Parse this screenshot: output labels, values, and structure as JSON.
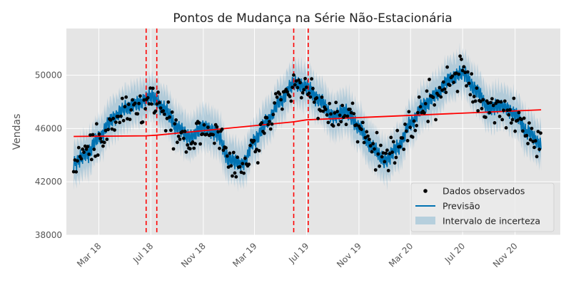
{
  "chart_data": {
    "type": "line",
    "title": "Pontos de Mudança na Série Não-Estacionária",
    "xlabel": "",
    "ylabel": "Vendas",
    "ylim": [
      38000,
      53500
    ],
    "xlim": [
      "2017-12-15",
      "2021-02-15"
    ],
    "y_ticks": [
      38000,
      42000,
      46000,
      50000
    ],
    "x_ticks": [
      {
        "date": "2018-03-01",
        "label": "Mar 18"
      },
      {
        "date": "2018-07-01",
        "label": "Jul 18"
      },
      {
        "date": "2018-11-01",
        "label": "Nov 18"
      },
      {
        "date": "2019-03-01",
        "label": "Mar 19"
      },
      {
        "date": "2019-07-01",
        "label": "Jul 19"
      },
      {
        "date": "2019-11-01",
        "label": "Nov 19"
      },
      {
        "date": "2020-03-01",
        "label": "Mar 20"
      },
      {
        "date": "2020-07-01",
        "label": "Jul 20"
      },
      {
        "date": "2020-11-01",
        "label": "Nov 20"
      }
    ],
    "grid": true,
    "legend_position": "bottom-right",
    "series": [
      {
        "name": "Dados observados",
        "kind": "scatter",
        "color": "#000000"
      },
      {
        "name": "Previsão",
        "kind": "line",
        "color": "#0072B2"
      },
      {
        "name": "Intervalo de incerteza",
        "kind": "band",
        "color": "#0072B2"
      }
    ],
    "trend": {
      "color": "#ff0000",
      "points": [
        {
          "date": "2018-01-01",
          "value": 45400
        },
        {
          "date": "2018-06-20",
          "value": 45450
        },
        {
          "date": "2018-07-15",
          "value": 45500
        },
        {
          "date": "2019-06-01",
          "value": 46500
        },
        {
          "date": "2019-07-01",
          "value": 46650
        },
        {
          "date": "2021-01-01",
          "value": 47400
        }
      ]
    },
    "changepoints": {
      "color": "#ff0000",
      "dates": [
        "2018-06-20",
        "2018-07-15",
        "2019-06-01",
        "2019-07-05"
      ]
    },
    "observed_sample": [
      {
        "date": "2018-01-01",
        "value": 43300
      },
      {
        "date": "2018-02-01",
        "value": 44000
      },
      {
        "date": "2018-03-01",
        "value": 45200
      },
      {
        "date": "2018-04-01",
        "value": 46600
      },
      {
        "date": "2018-05-01",
        "value": 47400
      },
      {
        "date": "2018-06-01",
        "value": 47800
      },
      {
        "date": "2018-07-01",
        "value": 48300
      },
      {
        "date": "2018-08-01",
        "value": 47400
      },
      {
        "date": "2018-09-01",
        "value": 46000
      },
      {
        "date": "2018-10-01",
        "value": 45200
      },
      {
        "date": "2018-11-01",
        "value": 46000
      },
      {
        "date": "2018-12-01",
        "value": 45600
      },
      {
        "date": "2019-01-01",
        "value": 43600
      },
      {
        "date": "2019-02-01",
        "value": 43200
      },
      {
        "date": "2019-03-01",
        "value": 45000
      },
      {
        "date": "2019-04-01",
        "value": 46500
      },
      {
        "date": "2019-05-01",
        "value": 48000
      },
      {
        "date": "2019-06-01",
        "value": 49300
      },
      {
        "date": "2019-07-01",
        "value": 49000
      },
      {
        "date": "2019-08-01",
        "value": 48000
      },
      {
        "date": "2019-09-01",
        "value": 46800
      },
      {
        "date": "2019-10-01",
        "value": 47200
      },
      {
        "date": "2019-11-01",
        "value": 46000
      },
      {
        "date": "2019-12-01",
        "value": 44500
      },
      {
        "date": "2020-01-01",
        "value": 43500
      },
      {
        "date": "2020-02-01",
        "value": 44500
      },
      {
        "date": "2020-03-01",
        "value": 46300
      },
      {
        "date": "2020-04-01",
        "value": 47600
      },
      {
        "date": "2020-05-01",
        "value": 48500
      },
      {
        "date": "2020-06-01",
        "value": 49600
      },
      {
        "date": "2020-07-01",
        "value": 50100
      },
      {
        "date": "2020-08-01",
        "value": 48800
      },
      {
        "date": "2020-09-01",
        "value": 47400
      },
      {
        "date": "2020-10-01",
        "value": 47600
      },
      {
        "date": "2020-11-01",
        "value": 47000
      },
      {
        "date": "2020-12-01",
        "value": 45600
      },
      {
        "date": "2021-01-01",
        "value": 44700
      }
    ]
  }
}
